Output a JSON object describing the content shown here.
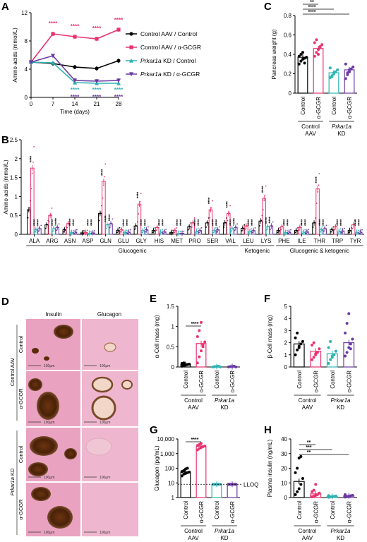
{
  "colors": {
    "black": "#000000",
    "pink": "#e8336f",
    "teal": "#2fb3b3",
    "purple": "#6a3aa3"
  },
  "panel_labels": [
    "A",
    "B",
    "C",
    "D",
    "E",
    "F",
    "G",
    "H"
  ],
  "legend": [
    {
      "label": "Control AAV / Control",
      "color": "#000000",
      "marker": "circle"
    },
    {
      "label": "Control AAV / α-GCGR",
      "color": "#e8336f",
      "marker": "square"
    },
    {
      "label": "Prkar1a KD / Control",
      "color": "#2fb3b3",
      "marker": "triangle-up"
    },
    {
      "label": "Prkar1a KD / α-GCGR",
      "color": "#6a3aa3",
      "marker": "triangle-down"
    }
  ],
  "group_labels": {
    "control": "Control",
    "agcgr": "α-GCGR",
    "aav": "AAV",
    "prkar1a": "Prkar1a",
    "kd": "KD",
    "control_aav": "Control AAV",
    "prkar1a_kd": "Prkar1a KD"
  },
  "histology": {
    "col1": "Insulin",
    "col2": "Glucagon",
    "scale": "100µm"
  },
  "lloq": "LLOQ",
  "chart_data": [
    {
      "id": "A",
      "type": "line",
      "xlabel": "Time (days)",
      "ylabel": "Amino acids (mmol/L)",
      "xlim": [
        0,
        28
      ],
      "ylim": [
        0,
        12
      ],
      "xticks": [
        0,
        7,
        14,
        21,
        28
      ],
      "yticks": [
        0,
        4,
        8,
        12
      ],
      "series": [
        {
          "name": "Control AAV / Control",
          "color": "#000000",
          "x": [
            0,
            7,
            14,
            21,
            28
          ],
          "y": [
            5.0,
            4.8,
            4.3,
            4.1,
            5.2
          ]
        },
        {
          "name": "Control AAV / α-GCGR",
          "color": "#e8336f",
          "x": [
            0,
            7,
            14,
            21,
            28
          ],
          "y": [
            5.0,
            9.0,
            8.6,
            8.3,
            9.6
          ]
        },
        {
          "name": "Prkar1a KD / Control",
          "color": "#2fb3b3",
          "x": [
            0,
            7,
            14,
            21,
            28
          ],
          "y": [
            5.0,
            4.9,
            2.1,
            2.0,
            2.0
          ]
        },
        {
          "name": "Prkar1a KD / α-GCGR",
          "color": "#6a3aa3",
          "x": [
            0,
            7,
            14,
            21,
            28
          ],
          "y": [
            5.0,
            5.9,
            2.4,
            2.3,
            2.4
          ]
        }
      ],
      "annotations": [
        {
          "x": 7,
          "y": 10.2,
          "text": "****",
          "color": "#e8336f"
        },
        {
          "x": 14,
          "y": 9.8,
          "text": "****",
          "color": "#e8336f"
        },
        {
          "x": 21,
          "y": 9.5,
          "text": "****",
          "color": "#e8336f"
        },
        {
          "x": 28,
          "y": 10.7,
          "text": "****",
          "color": "#e8336f"
        },
        {
          "x": 14,
          "y": 0.8,
          "text": "****",
          "color": "#2fb3b3"
        },
        {
          "x": 21,
          "y": 0.8,
          "text": "****",
          "color": "#2fb3b3"
        },
        {
          "x": 28,
          "y": 0.8,
          "text": "****",
          "color": "#2fb3b3"
        },
        {
          "x": 14,
          "y": -0.2,
          "text": "****",
          "color": "#6a3aa3"
        },
        {
          "x": 21,
          "y": -0.2,
          "text": "****",
          "color": "#6a3aa3"
        },
        {
          "x": 28,
          "y": -0.2,
          "text": "****",
          "color": "#6a3aa3"
        }
      ]
    },
    {
      "id": "B",
      "type": "bar",
      "ylabel": "Amino acids (mmol/L)",
      "ylim": [
        0,
        2.5
      ],
      "yticks": [
        0,
        0.5,
        1.0,
        1.5,
        2.0,
        2.5
      ],
      "categories": [
        "ALA",
        "ARG",
        "ASN",
        "ASP",
        "GLN",
        "GLU",
        "GLY",
        "HIS",
        "MET",
        "PRO",
        "SER",
        "VAL",
        "LEU",
        "LYS",
        "PHE",
        "ILE",
        "THR",
        "TRP",
        "TYR"
      ],
      "series": [
        {
          "name": "Control AAV / Control",
          "color": "#000000",
          "values": [
            0.65,
            0.25,
            0.12,
            0.04,
            0.55,
            0.1,
            0.22,
            0.1,
            0.05,
            0.2,
            0.3,
            0.3,
            0.16,
            0.35,
            0.1,
            0.1,
            0.3,
            0.12,
            0.1
          ]
        },
        {
          "name": "Control AAV / α-GCGR",
          "color": "#e8336f",
          "values": [
            1.75,
            0.5,
            0.28,
            0.05,
            1.4,
            0.12,
            0.8,
            0.18,
            0.1,
            0.3,
            0.65,
            0.55,
            0.22,
            0.95,
            0.2,
            0.18,
            1.2,
            0.2,
            0.25
          ]
        },
        {
          "name": "Prkar1a KD / Control",
          "color": "#2fb3b3",
          "values": [
            0.12,
            0.15,
            0.05,
            0.03,
            0.25,
            0.05,
            0.1,
            0.06,
            0.03,
            0.08,
            0.1,
            0.15,
            0.08,
            0.2,
            0.05,
            0.06,
            0.12,
            0.08,
            0.05
          ]
        },
        {
          "name": "Prkar1a KD / α-GCGR",
          "color": "#6a3aa3",
          "values": [
            0.15,
            0.18,
            0.06,
            0.04,
            0.28,
            0.06,
            0.12,
            0.07,
            0.03,
            0.1,
            0.12,
            0.18,
            0.1,
            0.22,
            0.06,
            0.07,
            0.15,
            0.09,
            0.06
          ]
        }
      ],
      "groups": [
        {
          "label": "Glucogenic",
          "from": "ALA",
          "to": "VAL"
        },
        {
          "label": "Ketogenic",
          "from": "LEU",
          "to": "LYS"
        },
        {
          "label": "Glucogenic & ketogenic",
          "from": "PHE",
          "to": "TYR"
        }
      ]
    },
    {
      "id": "C",
      "type": "bar",
      "ylabel": "Pancreas weight (g)",
      "ylim": [
        0,
        0.8
      ],
      "yticks": [
        0,
        0.2,
        0.4,
        0.6,
        0.8
      ],
      "values": [
        0.37,
        0.46,
        0.21,
        0.24
      ],
      "points": [
        [
          0.3,
          0.33,
          0.35,
          0.36,
          0.37,
          0.38,
          0.4,
          0.42,
          0.31
        ],
        [
          0.38,
          0.42,
          0.45,
          0.47,
          0.5,
          0.52,
          0.55,
          0.4,
          0.48
        ],
        [
          0.16,
          0.18,
          0.2,
          0.22,
          0.24,
          0.26,
          0.17,
          0.21
        ],
        [
          0.15,
          0.19,
          0.22,
          0.25,
          0.27,
          0.3,
          0.21,
          0.24
        ]
      ],
      "sig": [
        {
          "a": 0,
          "b": 1,
          "text": "**"
        },
        {
          "a": 0,
          "b": 2,
          "text": "****"
        },
        {
          "a": 0,
          "b": 3,
          "text": "****"
        }
      ]
    },
    {
      "id": "E",
      "type": "bar",
      "ylabel": "α-Cell mass (mg)",
      "ylim": [
        0,
        1.5
      ],
      "yticks": [
        0,
        0.5,
        1.0,
        1.5
      ],
      "values": [
        0.06,
        0.58,
        0.01,
        0.01
      ],
      "points": [
        [
          0.02,
          0.04,
          0.05,
          0.06,
          0.07,
          0.09,
          0.1,
          0.05
        ],
        [
          0.1,
          0.25,
          0.4,
          0.5,
          0.62,
          0.75,
          0.9,
          1.1,
          0.55
        ],
        [
          0.0,
          0.01,
          0.01,
          0.02,
          0.0
        ],
        [
          0.0,
          0.01,
          0.01,
          0.02,
          0.0
        ]
      ],
      "sig": [
        {
          "a": 0,
          "b": 1,
          "text": "****"
        }
      ]
    },
    {
      "id": "F",
      "type": "bar",
      "ylabel": "β-Cell mass (mg)",
      "ylim": [
        0,
        5
      ],
      "yticks": [
        0,
        1,
        2,
        3,
        4,
        5
      ],
      "values": [
        1.9,
        1.3,
        1.1,
        2.0
      ],
      "points": [
        [
          1.0,
          1.4,
          1.7,
          1.9,
          2.1,
          2.4,
          2.8,
          1.6
        ],
        [
          0.6,
          0.8,
          1.0,
          1.2,
          1.5,
          1.8,
          2.0,
          1.1
        ],
        [
          0.3,
          0.6,
          0.8,
          1.0,
          1.3,
          1.6,
          2.1,
          0.9
        ],
        [
          0.9,
          1.2,
          1.6,
          1.9,
          2.3,
          2.8,
          3.6,
          4.4,
          1.5
        ]
      ],
      "sig": []
    },
    {
      "id": "G",
      "type": "bar",
      "scale": "log",
      "ylabel": "Glucagon (pg/mL)",
      "ylim": [
        1,
        10000
      ],
      "yticks": [
        1,
        10,
        100,
        1000,
        10000
      ],
      "ytick_labels": [
        "1",
        "10",
        "100",
        "1,000",
        "10,000"
      ],
      "values": [
        55,
        3200,
        8,
        8
      ],
      "points": [
        [
          30,
          40,
          45,
          50,
          55,
          60,
          70,
          90,
          100
        ],
        [
          1800,
          2200,
          2600,
          3000,
          3300,
          3600,
          4200,
          5000
        ],
        [
          8,
          8,
          8,
          8,
          8,
          8
        ],
        [
          8,
          8,
          8,
          8,
          8,
          8
        ]
      ],
      "lloq_value": 8,
      "sig": [
        {
          "a": 0,
          "b": 1,
          "text": "****"
        }
      ]
    },
    {
      "id": "H",
      "type": "bar",
      "ylabel": "Plasma insulin (ng/mL)",
      "ylim": [
        0,
        40
      ],
      "yticks": [
        0,
        10,
        20,
        30,
        40
      ],
      "values": [
        11,
        2.5,
        0.8,
        1.2
      ],
      "points": [
        [
          2,
          4,
          6,
          9,
          13,
          17,
          20,
          27,
          28
        ],
        [
          0.5,
          1,
          1.5,
          2,
          3,
          4,
          5,
          9
        ],
        [
          0.2,
          0.4,
          0.6,
          0.8,
          1.0,
          1.3,
          0.5
        ],
        [
          0.3,
          0.6,
          0.9,
          1.2,
          1.5,
          2.0,
          0.7
        ]
      ],
      "sig": [
        {
          "a": 0,
          "b": 1,
          "text": "**"
        },
        {
          "a": 0,
          "b": 2,
          "text": "***"
        },
        {
          "a": 0,
          "b": 3,
          "text": "**"
        }
      ]
    }
  ]
}
